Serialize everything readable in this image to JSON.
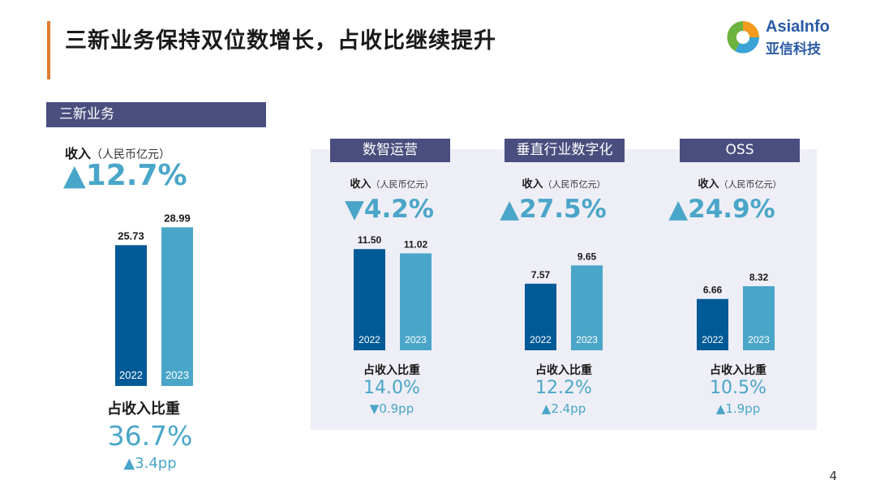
{
  "title": "三新业务保持双位数增长，占收比继续提升",
  "logo": {
    "en": "AsiaInfo",
    "cn": "亚信科技"
  },
  "page_number": "4",
  "section": "三新业务",
  "colors": {
    "bar_2022": "#005a96",
    "bar_2023": "#4aa6c8",
    "header_bg": "#4a4e7e",
    "accent": "#e07b2e"
  },
  "revenue_label": "收入",
  "revenue_unit": "（人民币亿元）",
  "share_label": "占收入比重",
  "overall": {
    "growth": "▲12.7%",
    "share": "36.7%",
    "share_delta": "▲3.4pp"
  },
  "segments": [
    {
      "name": "数智运营",
      "growth": "▼4.2%",
      "share": "14.0%",
      "share_delta": "▼0.9pp"
    },
    {
      "name": "垂直行业数字化",
      "growth": "▲27.5%",
      "share": "12.2%",
      "share_delta": "▲2.4pp"
    },
    {
      "name": "OSS",
      "growth": "▲24.9%",
      "share": "10.5%",
      "share_delta": "▲1.9pp"
    }
  ],
  "chart_data": [
    {
      "type": "bar",
      "title": "三新业务",
      "categories": [
        "2022",
        "2023"
      ],
      "values": [
        25.73,
        28.99
      ],
      "value_labels": [
        "25.73",
        "28.99"
      ],
      "ylabel": "收入（人民币亿元）"
    },
    {
      "type": "bar",
      "title": "数智运营",
      "categories": [
        "2022",
        "2023"
      ],
      "values": [
        11.5,
        11.02
      ],
      "value_labels": [
        "11.50",
        "11.02"
      ],
      "ylabel": "收入（人民币亿元）"
    },
    {
      "type": "bar",
      "title": "垂直行业数字化",
      "categories": [
        "2022",
        "2023"
      ],
      "values": [
        7.57,
        9.65
      ],
      "value_labels": [
        "7.57",
        "9.65"
      ],
      "ylabel": "收入（人民币亿元）"
    },
    {
      "type": "bar",
      "title": "OSS",
      "categories": [
        "2022",
        "2023"
      ],
      "values": [
        6.66,
        8.32
      ],
      "value_labels": [
        "6.66",
        "8.32"
      ],
      "ylabel": "收入（人民币亿元）"
    }
  ]
}
